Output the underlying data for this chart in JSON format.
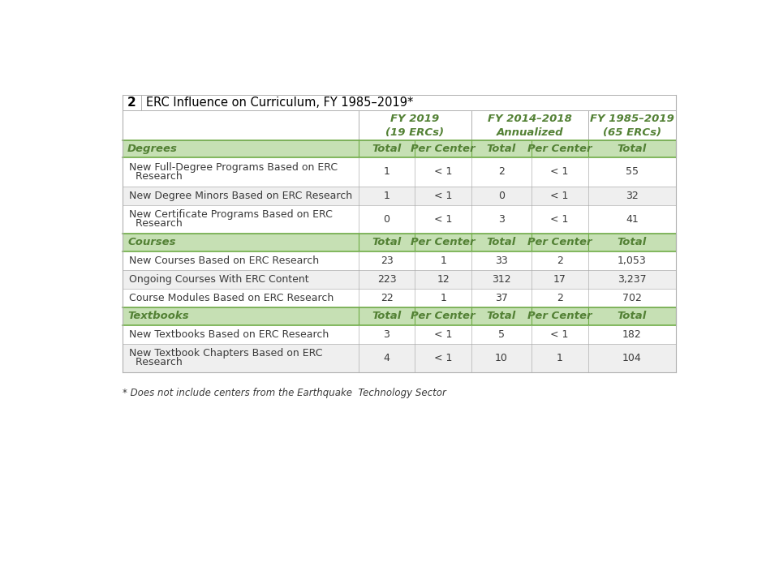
{
  "title_number": "2",
  "title_text": "ERC Influence on Curriculum, FY 1985–2019*",
  "col_headers": [
    [
      "FY 2019",
      "(19 ERCs)"
    ],
    [
      "FY 2014–2018",
      "Annualized"
    ],
    [
      "FY 1985–2019",
      "(65 ERCs)"
    ]
  ],
  "sub_headers": [
    "Total",
    "Per Center",
    "Total",
    "Per Center",
    "Total"
  ],
  "section_bg_color": "#c6e0b4",
  "section_border_color": "#70ad47",
  "header_text_color": "#538135",
  "sections": [
    {
      "name": "Degrees",
      "rows": [
        {
          "label": [
            "New Full-Degree Programs Based on ERC",
            "  Research"
          ],
          "values": [
            "1",
            "< 1",
            "2",
            "< 1",
            "55"
          ],
          "double": true
        },
        {
          "label": [
            "New Degree Minors Based on ERC Research"
          ],
          "values": [
            "1",
            "< 1",
            "0",
            "< 1",
            "32"
          ],
          "double": false
        },
        {
          "label": [
            "New Certificate Programs Based on ERC",
            "  Research"
          ],
          "values": [
            "0",
            "< 1",
            "3",
            "< 1",
            "41"
          ],
          "double": true
        }
      ]
    },
    {
      "name": "Courses",
      "rows": [
        {
          "label": [
            "New Courses Based on ERC Research"
          ],
          "values": [
            "23",
            "1",
            "33",
            "2",
            "1,053"
          ],
          "double": false
        },
        {
          "label": [
            "Ongoing Courses With ERC Content"
          ],
          "values": [
            "223",
            "12",
            "312",
            "17",
            "3,237"
          ],
          "double": false
        },
        {
          "label": [
            "Course Modules Based on ERC Research"
          ],
          "values": [
            "22",
            "1",
            "37",
            "2",
            "702"
          ],
          "double": false
        }
      ]
    },
    {
      "name": "Textbooks",
      "rows": [
        {
          "label": [
            "New Textbooks Based on ERC Research"
          ],
          "values": [
            "3",
            "< 1",
            "5",
            "< 1",
            "182"
          ],
          "double": false
        },
        {
          "label": [
            "New Textbook Chapters Based on ERC",
            "  Research"
          ],
          "values": [
            "4",
            "< 1",
            "10",
            "1",
            "104"
          ],
          "double": true
        }
      ]
    }
  ],
  "footnote": "* Does not include centers from the Earthquake  Technology Sector",
  "border_color": "#b0b0b0",
  "text_color": "#3a3a3a",
  "bg_color": "#ffffff"
}
